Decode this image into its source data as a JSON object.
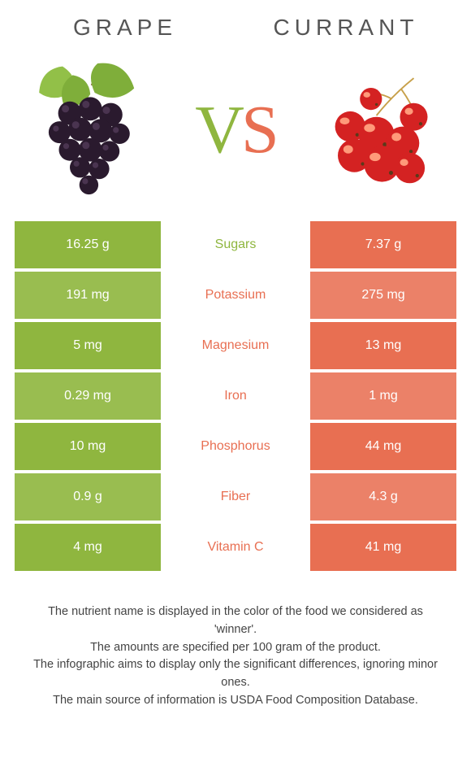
{
  "header": {
    "left_title": "GRAPE",
    "right_title": "CURRANT"
  },
  "vs": {
    "left_char": "V",
    "right_char": "S"
  },
  "colors": {
    "grape_primary": "#8fb63f",
    "grape_alt": "#99bd50",
    "currant_primary": "#e86f52",
    "currant_alt": "#eb8168",
    "background": "#ffffff",
    "title_text": "#555555",
    "footer_text": "#444444"
  },
  "table": {
    "rows": [
      {
        "label": "Sugars",
        "left": "16.25 g",
        "right": "7.37 g",
        "winner": "left"
      },
      {
        "label": "Potassium",
        "left": "191 mg",
        "right": "275 mg",
        "winner": "right"
      },
      {
        "label": "Magnesium",
        "left": "5 mg",
        "right": "13 mg",
        "winner": "right"
      },
      {
        "label": "Iron",
        "left": "0.29 mg",
        "right": "1 mg",
        "winner": "right"
      },
      {
        "label": "Phosphorus",
        "left": "10 mg",
        "right": "44 mg",
        "winner": "right"
      },
      {
        "label": "Fiber",
        "left": "0.9 g",
        "right": "4.3 g",
        "winner": "right"
      },
      {
        "label": "Vitamin C",
        "left": "4 mg",
        "right": "41 mg",
        "winner": "right"
      }
    ]
  },
  "footer": {
    "line1": "The nutrient name is displayed in the color of the food we considered as 'winner'.",
    "line2": "The amounts are specified per 100 gram of the product.",
    "line3": "The infographic aims to display only the significant differences, ignoring minor ones.",
    "line4": "The main source of information is USDA Food Composition Database."
  }
}
